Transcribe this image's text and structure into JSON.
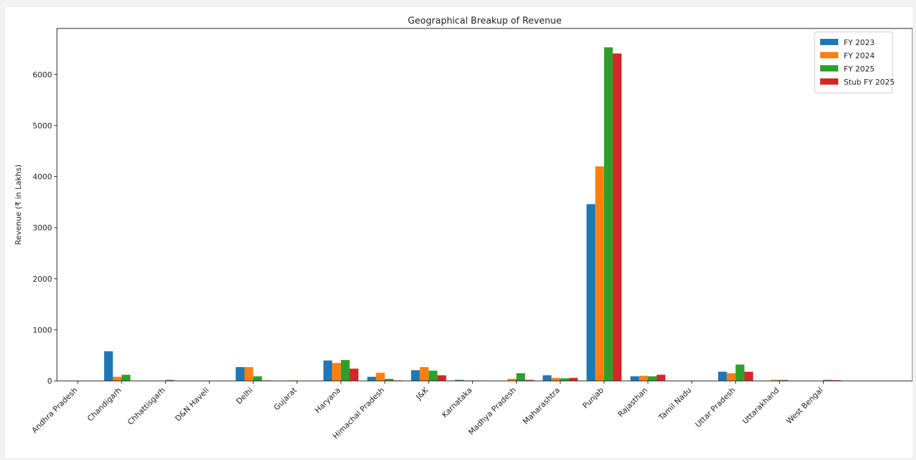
{
  "chart_data": {
    "type": "bar",
    "title": "Geographical Breakup of Revenue",
    "xlabel": "",
    "ylabel": "Revenue (₹ in Lakhs)",
    "ylim": [
      0,
      6900
    ],
    "yticks": [
      0,
      1000,
      2000,
      3000,
      4000,
      5000,
      6000
    ],
    "grid": false,
    "legend_position": "top-right",
    "categories": [
      "Andhra Pradesh",
      "Chandigarh",
      "Chhattisgarh",
      "D&N Haveli",
      "Delhi",
      "Gujarat",
      "Haryana",
      "Himachal Pradesh",
      "J&K",
      "Karnataka",
      "Madhya Pradesh",
      "Maharashtra",
      "Punjab",
      "Rajasthan",
      "Tamil Nadu",
      "Uttar Pradesh",
      "Uttarakhand",
      "West Bengal"
    ],
    "series": [
      {
        "name": "FY 2023",
        "color": "#1f77b4",
        "values": [
          0,
          580,
          0,
          0,
          270,
          0,
          400,
          80,
          210,
          20,
          0,
          110,
          3460,
          90,
          0,
          180,
          0,
          0
        ]
      },
      {
        "name": "FY 2024",
        "color": "#ff7f0e",
        "values": [
          0,
          80,
          0,
          0,
          270,
          10,
          350,
          160,
          270,
          10,
          40,
          60,
          4200,
          100,
          0,
          150,
          20,
          0
        ]
      },
      {
        "name": "FY 2025",
        "color": "#2ca02c",
        "values": [
          0,
          120,
          20,
          0,
          90,
          5,
          410,
          40,
          200,
          10,
          150,
          50,
          6530,
          90,
          0,
          320,
          20,
          20
        ]
      },
      {
        "name": "Stub FY 2025",
        "color": "#d62728",
        "values": [
          0,
          0,
          0,
          0,
          10,
          0,
          240,
          10,
          110,
          0,
          20,
          60,
          6410,
          120,
          0,
          180,
          0,
          15
        ]
      }
    ]
  }
}
